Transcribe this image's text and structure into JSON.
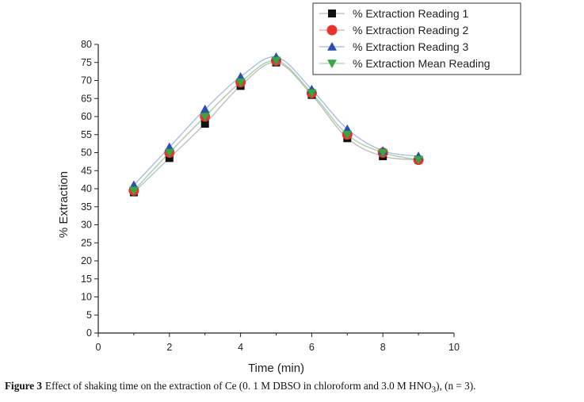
{
  "caption": {
    "label": "Figure 3",
    "text_before": "Effect of shaking time on the extraction of Ce (0. 1 M DBSO in chloroform and 3.0 M HNO",
    "subscript": "3",
    "text_after": "), (n = 3)."
  },
  "chart_data": {
    "type": "line",
    "title": "",
    "xlabel": "Time (min)",
    "ylabel": "% Extraction",
    "xlim": [
      0,
      10
    ],
    "ylim": [
      0,
      80
    ],
    "x_ticks": [
      0,
      2,
      4,
      6,
      8,
      10
    ],
    "y_ticks": [
      0,
      5,
      10,
      15,
      20,
      25,
      30,
      35,
      40,
      45,
      50,
      55,
      60,
      65,
      70,
      75,
      80
    ],
    "grid": false,
    "legend_position": "top-right",
    "x": [
      1,
      2,
      3,
      4,
      5,
      6,
      7,
      8,
      9
    ],
    "series": [
      {
        "name": "% Extraction Reading 1",
        "marker": "square",
        "color": "#111111",
        "line_color": "#bbbbbb",
        "values": [
          39.0,
          48.5,
          58.0,
          68.5,
          75.0,
          66.0,
          54.0,
          49.0,
          48.0
        ]
      },
      {
        "name": "% Extraction Reading 2",
        "marker": "circle",
        "color": "#e8322b",
        "line_color": "#f2a19b",
        "values": [
          39.5,
          50.0,
          60.0,
          69.5,
          75.5,
          66.5,
          55.0,
          50.0,
          48.0
        ]
      },
      {
        "name": "% Extraction Reading 3",
        "marker": "triangle-up",
        "color": "#2a4fb0",
        "line_color": "#a9b8e0",
        "values": [
          41.0,
          51.5,
          62.0,
          71.0,
          76.5,
          67.5,
          56.5,
          50.5,
          49.0
        ]
      },
      {
        "name": "% Extraction Mean Reading",
        "marker": "triangle-down",
        "color": "#37a742",
        "line_color": "#a3d6a8",
        "values": [
          39.5,
          50.0,
          60.0,
          69.5,
          75.5,
          66.5,
          55.0,
          50.0,
          48.0
        ]
      }
    ]
  }
}
